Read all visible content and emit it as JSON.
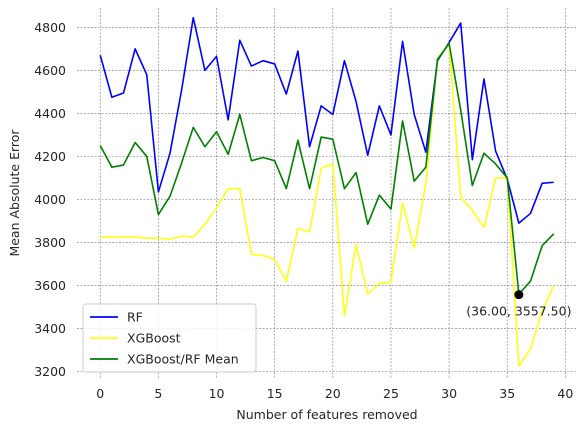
{
  "chart_data": {
    "type": "line",
    "title": "",
    "xlabel": "Number of features removed",
    "ylabel": "Mean Absolute Error",
    "xlim": [
      -2,
      41
    ],
    "ylim": [
      3170,
      4890
    ],
    "xticks": [
      0,
      5,
      10,
      15,
      20,
      25,
      30,
      35,
      40
    ],
    "yticks": [
      3200,
      3400,
      3600,
      3800,
      4000,
      4200,
      4400,
      4600,
      4800
    ],
    "grid": true,
    "legend_position": "lower-left",
    "x": [
      0,
      1,
      2,
      3,
      4,
      5,
      6,
      7,
      8,
      9,
      10,
      11,
      12,
      13,
      14,
      15,
      16,
      17,
      18,
      19,
      20,
      21,
      22,
      23,
      24,
      25,
      26,
      27,
      28,
      29,
      30,
      31,
      32,
      33,
      34,
      35,
      36,
      37,
      38,
      39
    ],
    "series": [
      {
        "name": "RF",
        "color": "#0000ff",
        "values": [
          4670,
          4475,
          4495,
          4700,
          4580,
          4035,
          4215,
          4510,
          4845,
          4600,
          4665,
          4370,
          4740,
          4620,
          4645,
          4630,
          4490,
          4690,
          4245,
          4435,
          4395,
          4645,
          4455,
          4205,
          4435,
          4300,
          4735,
          4395,
          4220,
          4645,
          4730,
          4820,
          4185,
          4560,
          4225,
          4095,
          3890,
          3935,
          4075,
          4080
        ]
      },
      {
        "name": "XGBoost",
        "color": "#ffff14",
        "values": [
          3825,
          3825,
          3825,
          3825,
          3820,
          3820,
          3815,
          3830,
          3825,
          3885,
          3960,
          4050,
          4050,
          3745,
          3740,
          3720,
          3620,
          3865,
          3850,
          4145,
          4165,
          3460,
          3790,
          3560,
          3610,
          3615,
          3985,
          3775,
          4075,
          4655,
          4725,
          4010,
          3950,
          3870,
          4100,
          4100,
          3225,
          3305,
          3480,
          3600
        ]
      },
      {
        "name": "XGBoost/RF Mean",
        "color": "#008000",
        "values": [
          4250,
          4150,
          4160,
          4265,
          4200,
          3930,
          4015,
          4170,
          4335,
          4245,
          4315,
          4210,
          4395,
          4180,
          4195,
          4180,
          4050,
          4275,
          4050,
          4290,
          4280,
          4050,
          4125,
          3885,
          4020,
          3955,
          4365,
          4085,
          4150,
          4650,
          4725,
          4415,
          4065,
          4215,
          4165,
          4100,
          3560,
          3620,
          3785,
          3840
        ]
      }
    ],
    "annotation": {
      "label": "(36.00, 3557.50)",
      "x": 36,
      "y": 3557.5,
      "marker_color": "#000000"
    }
  }
}
